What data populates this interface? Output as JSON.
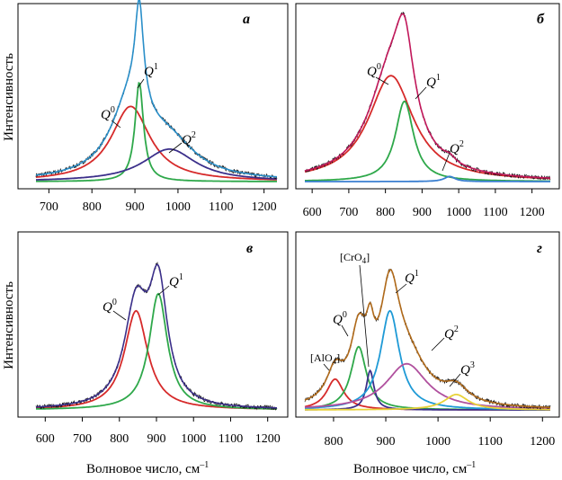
{
  "ylabel": "Интенсивность",
  "xlabel": "Волновое число, см",
  "xlabel_sup": "–1",
  "chart_data": [
    {
      "panel": "а",
      "type": "line",
      "xlim": [
        670,
        1230
      ],
      "xticks": [
        700,
        800,
        900,
        1000,
        1100,
        1200
      ],
      "components": [
        {
          "name": "Q0",
          "color": "#d62a2a",
          "center": 890,
          "amp": 0.44,
          "width": 55
        },
        {
          "name": "Q1",
          "color": "#2ea84a",
          "center": 910,
          "amp": 0.58,
          "width": 12
        },
        {
          "name": "Q2",
          "color": "#3b2f8a",
          "center": 980,
          "amp": 0.19,
          "width": 75
        }
      ],
      "envelope_color": "#2a8fc9",
      "annotations": [
        {
          "label": "Q",
          "sup": "0"
        },
        {
          "label": "Q",
          "sup": "1"
        },
        {
          "label": "Q",
          "sup": "2"
        }
      ]
    },
    {
      "panel": "б",
      "type": "line",
      "xlim": [
        580,
        1250
      ],
      "xticks": [
        600,
        700,
        800,
        900,
        1000,
        1100,
        1200
      ],
      "components": [
        {
          "name": "Q0",
          "color": "#d62a2a",
          "center": 815,
          "amp": 0.62,
          "width": 75
        },
        {
          "name": "Q1",
          "color": "#2ea84a",
          "center": 852,
          "amp": 0.47,
          "width": 30
        },
        {
          "name": "Q2",
          "color": "#3a7fd0",
          "center": 975,
          "amp": 0.03,
          "width": 18
        }
      ],
      "envelope_color": "#c2185b",
      "annotations": [
        {
          "label": "Q",
          "sup": "0"
        },
        {
          "label": "Q",
          "sup": "1"
        },
        {
          "label": "Q",
          "sup": "2"
        }
      ]
    },
    {
      "panel": "в",
      "type": "line",
      "xlim": [
        575,
        1225
      ],
      "xticks": [
        600,
        700,
        800,
        900,
        1000,
        1100,
        1200
      ],
      "components": [
        {
          "name": "Q0",
          "color": "#d62a2a",
          "center": 845,
          "amp": 0.58,
          "width": 38
        },
        {
          "name": "Q1",
          "color": "#2ea84a",
          "center": 905,
          "amp": 0.68,
          "width": 30
        }
      ],
      "envelope_color": "#3b2f8a",
      "annotations": [
        {
          "label": "Q",
          "sup": "0"
        },
        {
          "label": "Q",
          "sup": "1"
        }
      ]
    },
    {
      "panel": "г",
      "type": "line",
      "xlim": [
        745,
        1215
      ],
      "xticks": [
        800,
        900,
        1000,
        1100,
        1200
      ],
      "components": [
        {
          "name": "[AlO4]",
          "color": "#d62a2a",
          "center": 803,
          "amp": 0.18,
          "width": 20
        },
        {
          "name": "Q0",
          "color": "#2ea84a",
          "center": 848,
          "amp": 0.37,
          "width": 18
        },
        {
          "name": "[CrO4]",
          "color": "#3b2f8a",
          "center": 870,
          "amp": 0.23,
          "width": 9
        },
        {
          "name": "Q1",
          "color": "#1f9ad6",
          "center": 908,
          "amp": 0.58,
          "width": 22
        },
        {
          "name": "Q2",
          "color": "#b0509e",
          "center": 940,
          "amp": 0.27,
          "width": 48
        },
        {
          "name": "Q3",
          "color": "#e8d238",
          "center": 1035,
          "amp": 0.09,
          "width": 28
        }
      ],
      "envelope_color": "#b06a1a",
      "annotations": [
        {
          "label": "[AlO",
          "sub": "4",
          "tail": "]"
        },
        {
          "label": "Q",
          "sup": "0"
        },
        {
          "label": "[CrO",
          "sub": "4",
          "tail": "]"
        },
        {
          "label": "Q",
          "sup": "1"
        },
        {
          "label": "Q",
          "sup": "2"
        },
        {
          "label": "Q",
          "sup": "3"
        }
      ]
    }
  ]
}
